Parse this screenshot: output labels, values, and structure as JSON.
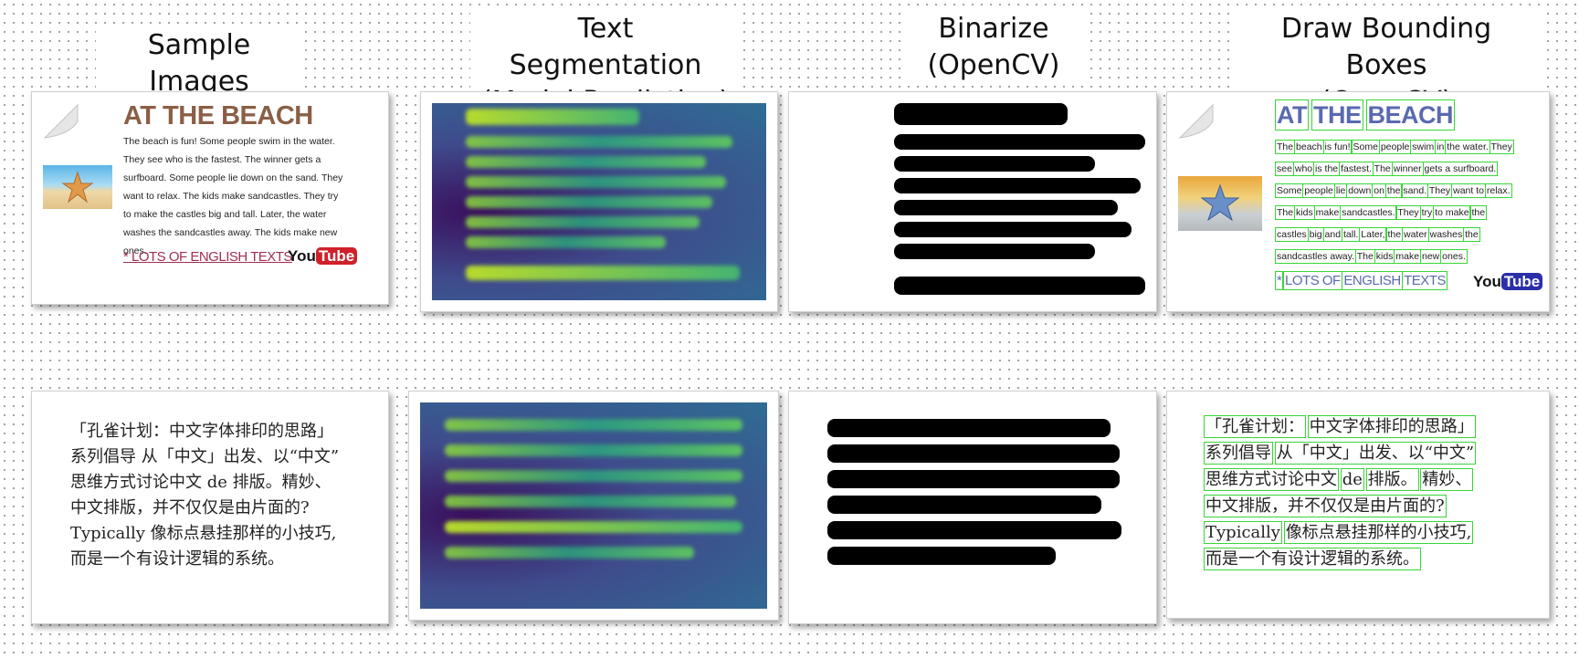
{
  "columns": [
    {
      "line1": "Sample Images",
      "line2": ""
    },
    {
      "line1": "Text Segmentation",
      "line2": "(Model Prediction)"
    },
    {
      "line1": "Binarize",
      "line2": "(OpenCV)"
    },
    {
      "line1": "Draw Bounding Boxes",
      "line2": "(OpenCV)"
    }
  ],
  "english_doc": {
    "title": "AT THE BEACH",
    "paragraph": "The beach is fun! Some people swim in the water. They see who is the fastest. The winner gets a surfboard. Some people lie down on the sand. They want to relax. The kids make sandcastles. They try to make the castles big and tall. Later, the water washes the sandcastles away. The kids make new ones.",
    "link": "* LOTS OF ENGLISH TEXTS",
    "logo_you": "You",
    "logo_tube": "Tube"
  },
  "chinese_doc": {
    "lines": [
      "「孔雀计划：中文字体排印的思路」",
      "系列倡导 从「中文」出发、以“中文”",
      "思维方式讨论中文 de 排版。精妙、",
      "中文排版，并不仅仅是由片面的?",
      "Typically 像标点悬挂那样的小技巧,",
      "而是一个有设计逻辑的系统。"
    ]
  },
  "bbox_english_doc": {
    "title_words": [
      "AT",
      "THE",
      "BEACH"
    ],
    "lines": [
      [
        "The",
        "beach",
        "is fun!",
        "Some",
        "people",
        "swim",
        "in",
        "the water.",
        "They"
      ],
      [
        "see",
        "who",
        "is the",
        "fastest.",
        "The",
        "winner",
        "gets a surfboard."
      ],
      [
        "Some",
        "people",
        "lie",
        "down",
        "on",
        "the",
        "sand.",
        "They",
        "want to",
        "relax."
      ],
      [
        "The",
        "kids",
        "make",
        "sandcastles.",
        "They",
        "try",
        "to make",
        "the"
      ],
      [
        "castles",
        "big",
        "and",
        "tall.",
        "Later,",
        "the",
        "water",
        "washes",
        "the"
      ],
      [
        "sandcastles away.",
        "The",
        "kids",
        "make",
        "new",
        "ones."
      ]
    ],
    "link_words": [
      "*",
      "LOTS OF",
      "ENGLISH",
      "TEXTS"
    ],
    "logo_you": "You",
    "logo_tube": "Tube"
  },
  "bbox_chinese_doc": {
    "lines": [
      [
        "「孔雀计划：",
        "中文字体排印的思路」"
      ],
      [
        "系列倡导",
        "从「中文」出发、以“中文”"
      ],
      [
        "思维方式讨论中文",
        "de",
        "排版。",
        "精妙、"
      ],
      [
        "中文排版，并不仅仅是由片面的?"
      ],
      [
        "Typically",
        "像标点悬挂那样的小技巧,"
      ],
      [
        "而是一个有设计逻辑的系统。"
      ]
    ]
  },
  "colors": {
    "bbox": "#37d637",
    "title_brown": "#8a5f46",
    "link_red": "#a03050",
    "heat_low": "#3f4b8c",
    "heat_high": "#8ed83c"
  }
}
